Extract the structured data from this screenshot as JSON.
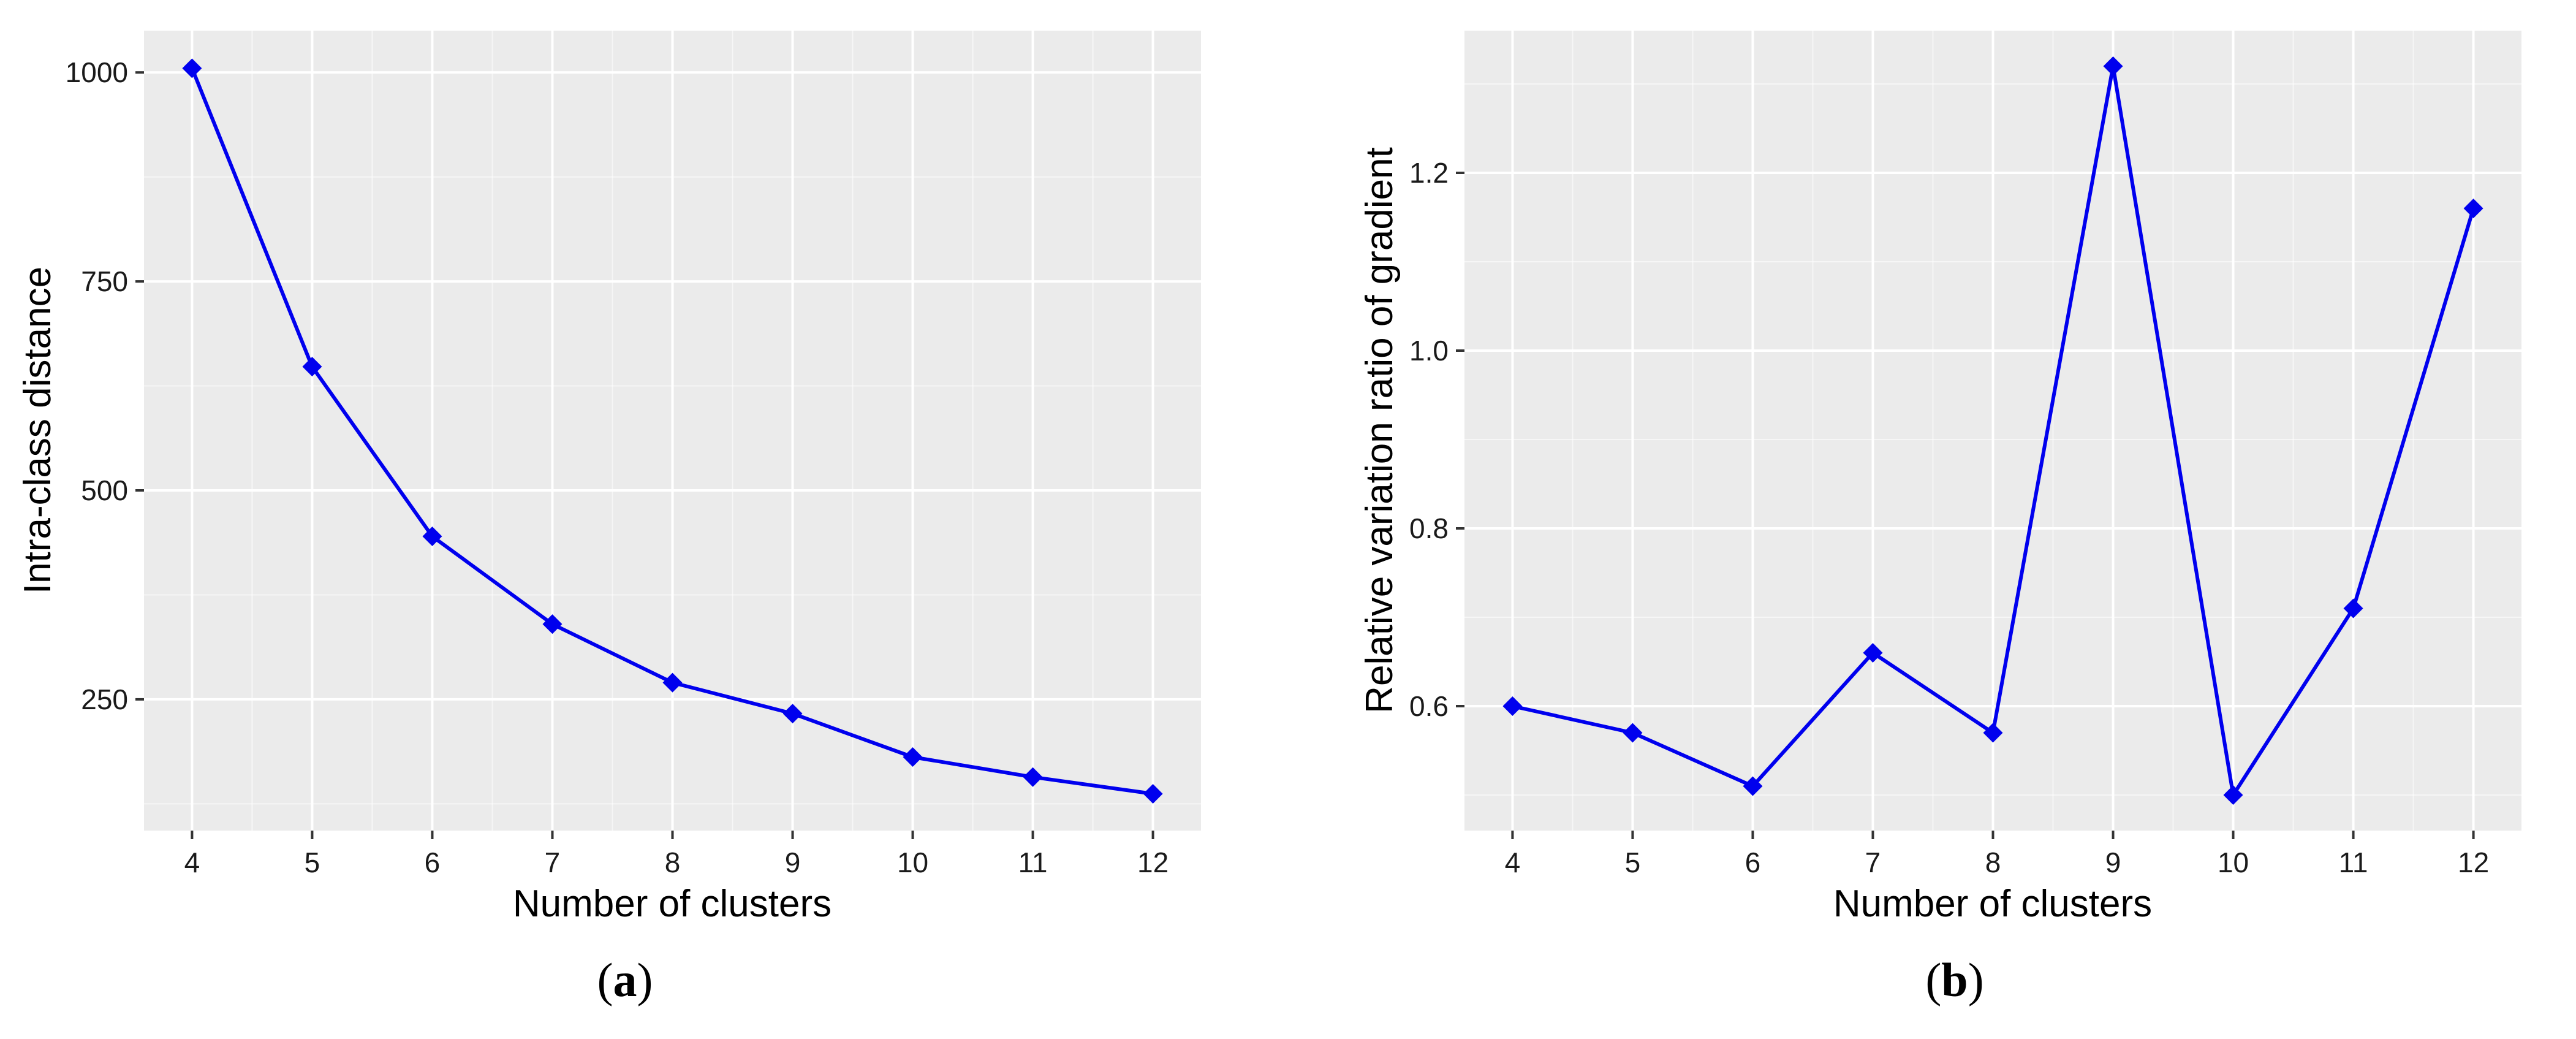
{
  "colors": {
    "panel_background": "#ebebeb",
    "grid_major": "#ffffff",
    "series": "#0000ee",
    "text": "#000000",
    "tick_text": "#1a1a1a"
  },
  "panels": {
    "a": {
      "label": "a"
    },
    "b": {
      "label": "b"
    }
  },
  "chart_data": [
    {
      "type": "line",
      "title": "",
      "xlabel": "Number of clusters",
      "ylabel": "Intra-class distance",
      "x": [
        4,
        5,
        6,
        7,
        8,
        9,
        10,
        11,
        12
      ],
      "series": [
        {
          "values": [
            1005,
            648,
            445,
            340,
            270,
            233,
            181,
            157,
            137
          ]
        }
      ],
      "xticks": [
        4,
        5,
        6,
        7,
        8,
        9,
        10,
        11,
        12
      ],
      "yticks": [
        250,
        500,
        750,
        1000
      ],
      "xlim": [
        3.6,
        12.4
      ],
      "ylim": [
        93,
        1050
      ],
      "marker": "diamond",
      "grid": true,
      "legend": "none"
    },
    {
      "type": "line",
      "title": "",
      "xlabel": "Number of clusters",
      "ylabel": "Relative variation ratio of gradient",
      "x": [
        4,
        5,
        6,
        7,
        8,
        9,
        10,
        11,
        12
      ],
      "series": [
        {
          "values": [
            0.6,
            0.57,
            0.51,
            0.66,
            0.57,
            1.32,
            0.5,
            0.71,
            1.16
          ]
        }
      ],
      "xticks": [
        4,
        5,
        6,
        7,
        8,
        9,
        10,
        11,
        12
      ],
      "yticks": [
        0.6,
        0.8,
        1.0,
        1.2
      ],
      "ytick_labels": [
        "0.6",
        "0.8",
        "1.0",
        "1.2"
      ],
      "xlim": [
        3.6,
        12.4
      ],
      "ylim": [
        0.46,
        1.36
      ],
      "marker": "diamond",
      "grid": true,
      "legend": "none"
    }
  ]
}
